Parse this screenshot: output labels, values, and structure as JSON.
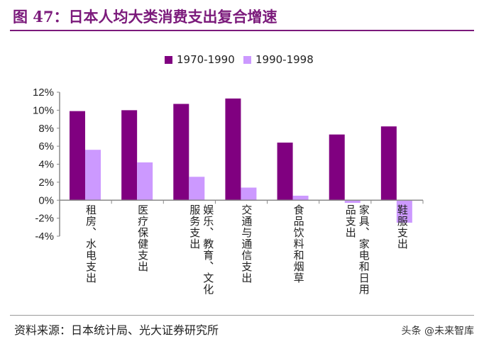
{
  "title": "图 47：日本人均大类消费支出复合增速",
  "source": "资料来源：日本统计局、光大证券研究所",
  "watermark": "头条 @未来智库",
  "chart_data": {
    "type": "bar",
    "categories": [
      "租房、水电支出",
      "医疗保健支出",
      "娱乐、教育、文化服务支出",
      "交通与通信支出",
      "食品饮料和烟草",
      "家具、家电和日用品支出",
      "鞋服支出"
    ],
    "series": [
      {
        "name": "1970-1990",
        "color": "#800080",
        "values": [
          9.9,
          10.0,
          10.7,
          11.3,
          6.4,
          7.3,
          8.2
        ]
      },
      {
        "name": "1990-1998",
        "color": "#cc99ff",
        "values": [
          5.6,
          4.2,
          2.6,
          1.4,
          0.5,
          -0.3,
          -2.5
        ]
      }
    ],
    "ylim": [
      -4,
      12
    ],
    "yticks": [
      "-4%",
      "-2%",
      "0%",
      "2%",
      "4%",
      "6%",
      "8%",
      "10%",
      "12%"
    ],
    "legend": "top"
  }
}
